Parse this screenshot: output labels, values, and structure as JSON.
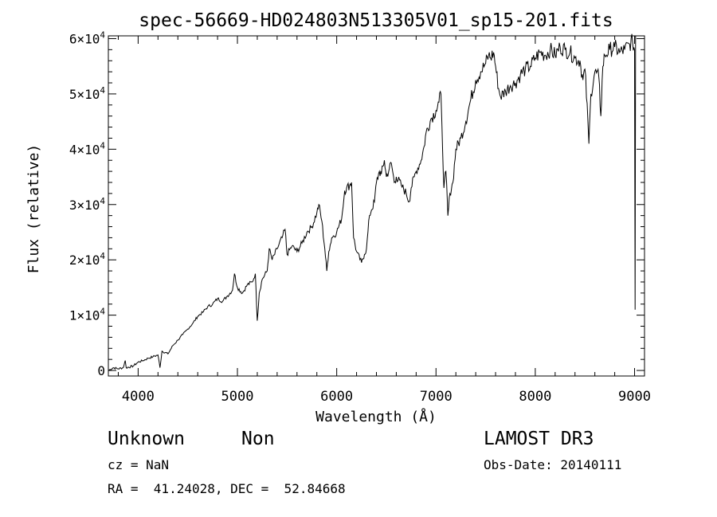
{
  "chart_data": {
    "type": "line",
    "title": "spec-56669-HD024803N513305V01_sp15-201.fits",
    "xlabel": "Wavelength (Å)",
    "ylabel": "Flux (relative)",
    "xlim": [
      3700,
      9100
    ],
    "ylim": [
      -1000,
      60500
    ],
    "x_ticks": [
      4000,
      5000,
      6000,
      7000,
      8000,
      9000
    ],
    "x_tick_labels": [
      "4000",
      "5000",
      "6000",
      "7000",
      "8000",
      "9000"
    ],
    "y_ticks": [
      0,
      10000,
      20000,
      30000,
      40000,
      50000,
      60000
    ],
    "y_tick_labels": [
      {
        "mantissa": "0",
        "exp": ""
      },
      {
        "mantissa": "1×10",
        "exp": "4"
      },
      {
        "mantissa": "2×10",
        "exp": "4"
      },
      {
        "mantissa": "3×10",
        "exp": "4"
      },
      {
        "mantissa": "4×10",
        "exp": "4"
      },
      {
        "mantissa": "5×10",
        "exp": "4"
      },
      {
        "mantissa": "6×10",
        "exp": "4"
      }
    ],
    "series": [
      {
        "name": "spectrum",
        "points": [
          [
            3700,
            0
          ],
          [
            3750,
            500
          ],
          [
            3800,
            300
          ],
          [
            3850,
            500
          ],
          [
            3870,
            1800
          ],
          [
            3880,
            500
          ],
          [
            3950,
            800
          ],
          [
            4000,
            1500
          ],
          [
            4050,
            1800
          ],
          [
            4100,
            2200
          ],
          [
            4150,
            2500
          ],
          [
            4200,
            2800
          ],
          [
            4220,
            500
          ],
          [
            4240,
            3500
          ],
          [
            4300,
            3000
          ],
          [
            4350,
            4500
          ],
          [
            4400,
            5500
          ],
          [
            4450,
            6500
          ],
          [
            4500,
            7500
          ],
          [
            4550,
            8500
          ],
          [
            4600,
            9800
          ],
          [
            4650,
            10500
          ],
          [
            4700,
            11500
          ],
          [
            4750,
            12000
          ],
          [
            4800,
            13000
          ],
          [
            4850,
            12500
          ],
          [
            4900,
            13500
          ],
          [
            4950,
            14500
          ],
          [
            4970,
            17500
          ],
          [
            5000,
            15000
          ],
          [
            5050,
            14000
          ],
          [
            5100,
            15500
          ],
          [
            5150,
            16000
          ],
          [
            5180,
            17500
          ],
          [
            5200,
            9000
          ],
          [
            5220,
            14000
          ],
          [
            5250,
            16500
          ],
          [
            5300,
            18000
          ],
          [
            5320,
            22000
          ],
          [
            5350,
            20000
          ],
          [
            5400,
            22000
          ],
          [
            5450,
            24000
          ],
          [
            5480,
            25500
          ],
          [
            5500,
            21000
          ],
          [
            5550,
            22500
          ],
          [
            5600,
            21500
          ],
          [
            5650,
            23000
          ],
          [
            5700,
            25000
          ],
          [
            5750,
            26000
          ],
          [
            5800,
            28500
          ],
          [
            5820,
            30000
          ],
          [
            5850,
            27000
          ],
          [
            5880,
            22000
          ],
          [
            5900,
            18000
          ],
          [
            5920,
            21500
          ],
          [
            5950,
            24000
          ],
          [
            6000,
            25000
          ],
          [
            6050,
            27500
          ],
          [
            6080,
            32500
          ],
          [
            6100,
            33000
          ],
          [
            6130,
            33500
          ],
          [
            6150,
            34000
          ],
          [
            6170,
            24000
          ],
          [
            6200,
            21500
          ],
          [
            6250,
            19500
          ],
          [
            6280,
            21000
          ],
          [
            6300,
            22000
          ],
          [
            6330,
            28000
          ],
          [
            6350,
            29000
          ],
          [
            6380,
            30500
          ],
          [
            6400,
            34000
          ],
          [
            6430,
            36000
          ],
          [
            6450,
            35500
          ],
          [
            6480,
            38000
          ],
          [
            6500,
            35000
          ],
          [
            6530,
            36500
          ],
          [
            6550,
            37500
          ],
          [
            6580,
            34000
          ],
          [
            6600,
            35000
          ],
          [
            6650,
            33500
          ],
          [
            6700,
            32000
          ],
          [
            6730,
            30500
          ],
          [
            6750,
            33000
          ],
          [
            6780,
            35000
          ],
          [
            6800,
            36000
          ],
          [
            6850,
            38000
          ],
          [
            6880,
            40500
          ],
          [
            6900,
            43000
          ],
          [
            6950,
            45500
          ],
          [
            7000,
            47000
          ],
          [
            7030,
            48500
          ],
          [
            7050,
            50000
          ],
          [
            7060,
            44000
          ],
          [
            7080,
            33000
          ],
          [
            7100,
            36000
          ],
          [
            7120,
            28000
          ],
          [
            7140,
            32000
          ],
          [
            7170,
            34000
          ],
          [
            7200,
            40000
          ],
          [
            7250,
            42000
          ],
          [
            7300,
            45000
          ],
          [
            7350,
            49000
          ],
          [
            7400,
            52500
          ],
          [
            7450,
            54000
          ],
          [
            7500,
            55500
          ],
          [
            7530,
            57000
          ],
          [
            7550,
            56500
          ],
          [
            7580,
            57500
          ],
          [
            7600,
            55000
          ],
          [
            7630,
            51000
          ],
          [
            7650,
            49500
          ],
          [
            7700,
            50500
          ],
          [
            7750,
            51500
          ],
          [
            7800,
            52000
          ],
          [
            7850,
            53500
          ],
          [
            7900,
            54500
          ],
          [
            7950,
            55000
          ],
          [
            8000,
            56500
          ],
          [
            8050,
            57500
          ],
          [
            8100,
            57000
          ],
          [
            8150,
            58000
          ],
          [
            8200,
            57000
          ],
          [
            8250,
            58500
          ],
          [
            8300,
            58000
          ],
          [
            8350,
            57500
          ],
          [
            8400,
            56500
          ],
          [
            8450,
            56000
          ],
          [
            8480,
            52500
          ],
          [
            8500,
            54500
          ],
          [
            8530,
            45000
          ],
          [
            8540,
            41000
          ],
          [
            8560,
            50000
          ],
          [
            8600,
            54000
          ],
          [
            8640,
            53000
          ],
          [
            8660,
            46000
          ],
          [
            8680,
            55000
          ],
          [
            8700,
            57000
          ],
          [
            8750,
            58000
          ],
          [
            8800,
            58500
          ],
          [
            8850,
            57500
          ],
          [
            8900,
            58000
          ],
          [
            8950,
            59000
          ],
          [
            8980,
            59500
          ],
          [
            9000,
            58000
          ],
          [
            9005,
            11000
          ],
          [
            9010,
            60500
          ]
        ]
      }
    ]
  },
  "info": {
    "object": "Unknown",
    "object_type": "Non",
    "survey": "LAMOST DR3",
    "cz": "cz = NaN",
    "obs_date": "Obs-Date: 20140111",
    "coords": "RA =  41.24028, DEC =  52.84668"
  }
}
